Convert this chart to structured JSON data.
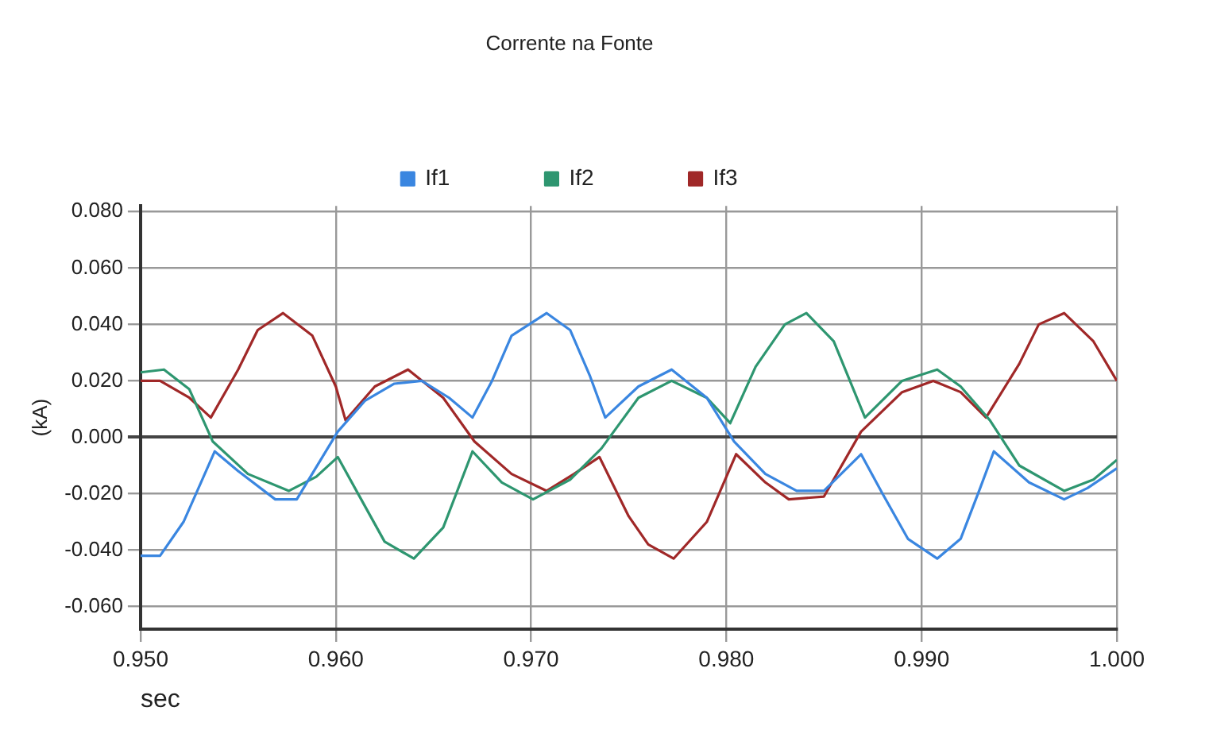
{
  "chart_data": {
    "type": "line",
    "title": "Corrente na Fonte",
    "xlabel": "sec",
    "ylabel": "(kA)",
    "xlim": [
      0.95,
      1.0
    ],
    "ylim": [
      -0.068,
      0.082
    ],
    "xticks": [
      {
        "value": 0.95,
        "label": "0.950"
      },
      {
        "value": 0.96,
        "label": "0.960"
      },
      {
        "value": 0.97,
        "label": "0.970"
      },
      {
        "value": 0.98,
        "label": "0.980"
      },
      {
        "value": 0.99,
        "label": "0.990"
      },
      {
        "value": 1.0,
        "label": "1.000"
      }
    ],
    "yticks": [
      {
        "value": -0.06,
        "label": "-0.060"
      },
      {
        "value": -0.04,
        "label": "-0.040"
      },
      {
        "value": -0.02,
        "label": "-0.020"
      },
      {
        "value": 0,
        "label": "0.000"
      },
      {
        "value": 0.02,
        "label": "0.020"
      },
      {
        "value": 0.04,
        "label": "0.040"
      },
      {
        "value": 0.06,
        "label": "0.060"
      },
      {
        "value": 0.08,
        "label": "0.080"
      }
    ],
    "grid": true,
    "legend": "top",
    "marker": "none",
    "line_style": "solid",
    "series": [
      {
        "name": "If1",
        "color": "#3a86e0",
        "x": [
          0.95,
          0.951,
          0.9522,
          0.9538,
          0.955,
          0.9569,
          0.958,
          0.9601,
          0.9615,
          0.963,
          0.9644,
          0.9658,
          0.967,
          0.968,
          0.969,
          0.9708,
          0.972,
          0.973,
          0.9738,
          0.9755,
          0.9772,
          0.979,
          0.9804,
          0.982,
          0.9836,
          0.985,
          0.9869,
          0.988,
          0.9893,
          0.9908,
          0.992,
          0.993,
          0.9937,
          0.9955,
          0.9973,
          0.9985,
          1.0
        ],
        "values": [
          -0.042,
          -0.042,
          -0.03,
          -0.005,
          -0.012,
          -0.022,
          -0.022,
          0.002,
          0.013,
          0.019,
          0.02,
          0.014,
          0.007,
          0.02,
          0.036,
          0.044,
          0.038,
          0.022,
          0.007,
          0.018,
          0.024,
          0.014,
          -0.0015,
          -0.013,
          -0.019,
          -0.019,
          -0.006,
          -0.02,
          -0.036,
          -0.043,
          -0.036,
          -0.018,
          -0.005,
          -0.016,
          -0.022,
          -0.018,
          -0.011
        ]
      },
      {
        "name": "If2",
        "color": "#2e9670",
        "x": [
          0.95,
          0.9512,
          0.9525,
          0.9537,
          0.9555,
          0.9576,
          0.959,
          0.9601,
          0.9613,
          0.9625,
          0.964,
          0.9655,
          0.967,
          0.9685,
          0.9701,
          0.972,
          0.9736,
          0.9755,
          0.9772,
          0.979,
          0.9802,
          0.9815,
          0.983,
          0.9841,
          0.9855,
          0.9871,
          0.989,
          0.9908,
          0.992,
          0.9935,
          0.995,
          0.9973,
          0.9988,
          1.0
        ],
        "values": [
          0.023,
          0.024,
          0.017,
          -0.0015,
          -0.013,
          -0.019,
          -0.014,
          -0.007,
          -0.022,
          -0.037,
          -0.043,
          -0.032,
          -0.005,
          -0.016,
          -0.022,
          -0.015,
          -0.004,
          0.014,
          0.02,
          0.014,
          0.005,
          0.025,
          0.04,
          0.044,
          0.034,
          0.007,
          0.02,
          0.024,
          0.018,
          0.006,
          -0.01,
          -0.019,
          -0.015,
          -0.008
        ]
      },
      {
        "name": "If3",
        "color": "#a02828",
        "x": [
          0.95,
          0.951,
          0.9525,
          0.9536,
          0.955,
          0.956,
          0.9573,
          0.9588,
          0.96,
          0.9605,
          0.962,
          0.9637,
          0.9655,
          0.9671,
          0.969,
          0.9708,
          0.9722,
          0.9735,
          0.975,
          0.976,
          0.9773,
          0.979,
          0.9805,
          0.982,
          0.9832,
          0.985,
          0.9869,
          0.989,
          0.9906,
          0.992,
          0.9933,
          0.995,
          0.996,
          0.9973,
          0.9988,
          1.0
        ],
        "values": [
          0.02,
          0.02,
          0.014,
          0.007,
          0.024,
          0.038,
          0.044,
          0.036,
          0.018,
          0.006,
          0.018,
          0.024,
          0.014,
          -0.0015,
          -0.013,
          -0.019,
          -0.013,
          -0.007,
          -0.028,
          -0.038,
          -0.043,
          -0.03,
          -0.006,
          -0.016,
          -0.022,
          -0.021,
          0.002,
          0.016,
          0.02,
          0.016,
          0.007,
          0.026,
          0.04,
          0.044,
          0.034,
          0.02
        ]
      }
    ]
  }
}
